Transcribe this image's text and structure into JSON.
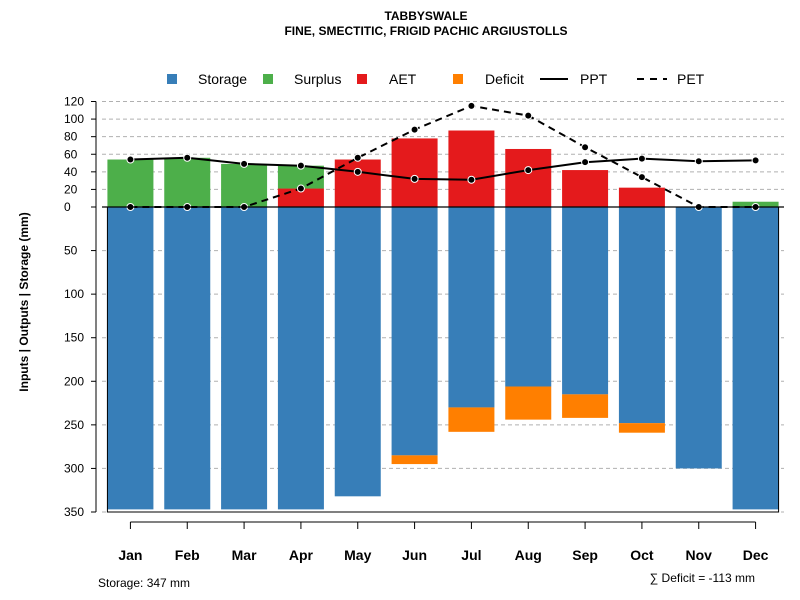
{
  "chart_data": {
    "type": "bar",
    "title": "TABBYSWALE",
    "subtitle": "FINE, SMECTITIC, FRIGID PACHIC ARGIUSTOLLS",
    "ylabel": "Inputs | Outputs | Storage    (mm)",
    "ylim_upper": [
      0,
      120
    ],
    "ylim_lower": [
      0,
      350
    ],
    "upper_ticks": [
      "0",
      "20",
      "40",
      "60",
      "80",
      "100",
      "120"
    ],
    "upper_tick_values": [
      0,
      20,
      40,
      60,
      80,
      100,
      120
    ],
    "lower_ticks": [
      "50",
      "100",
      "150",
      "200",
      "250",
      "300",
      "350"
    ],
    "lower_tick_values": [
      50,
      100,
      150,
      200,
      250,
      300,
      350
    ],
    "categories": [
      "Jan",
      "Feb",
      "Mar",
      "Apr",
      "May",
      "Jun",
      "Jul",
      "Aug",
      "Sep",
      "Oct",
      "Nov",
      "Dec"
    ],
    "legend": [
      "Storage",
      "Surplus",
      "AET",
      "Deficit",
      "PPT",
      "PET"
    ],
    "colors": {
      "storage": "#377EB8",
      "surplus": "#4DAF4A",
      "aet": "#E41A1C",
      "deficit": "#FF7F00",
      "line": "#000000",
      "grid": "#b0b0b0"
    },
    "series": [
      {
        "name": "Storage",
        "values": [
          347,
          347,
          347,
          347,
          332,
          285,
          230,
          206,
          215,
          248,
          300,
          347
        ]
      },
      {
        "name": "Surplus",
        "values": [
          54,
          56,
          49,
          26,
          0,
          0,
          0,
          0,
          0,
          0,
          0,
          6
        ]
      },
      {
        "name": "AET",
        "values": [
          0,
          0,
          0,
          21,
          54,
          78,
          87,
          66,
          42,
          22,
          0,
          0
        ]
      },
      {
        "name": "Deficit",
        "values": [
          0,
          0,
          0,
          0,
          0,
          10,
          28,
          38,
          27,
          11,
          0,
          0
        ]
      },
      {
        "name": "PPT",
        "values": [
          54,
          56,
          49,
          47,
          40,
          32,
          31,
          42,
          51,
          55,
          52,
          53
        ]
      },
      {
        "name": "PET",
        "values": [
          0,
          0,
          0,
          21,
          56,
          88,
          115,
          104,
          68,
          34,
          0,
          0
        ]
      }
    ],
    "footnote_left": "Storage: 347 mm",
    "footnote_right": "∑ Deficit = -113 mm"
  }
}
